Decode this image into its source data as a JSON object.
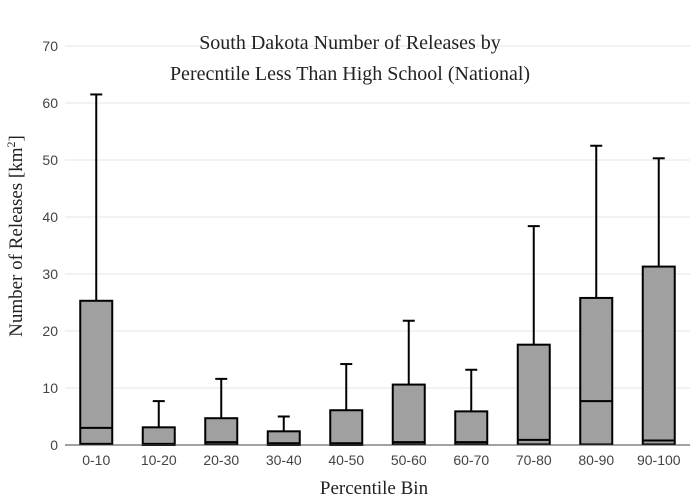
{
  "chart_data": {
    "type": "box",
    "title_lines": [
      "South Dakota Number of Releases by",
      "Perecntile Less Than High School (National)"
    ],
    "xlabel": "Percentile Bin",
    "ylabel_main": "Number of Releases  [km",
    "ylabel_sup": "2",
    "ylabel_end": "]",
    "ylim": [
      0,
      70
    ],
    "yticks": [
      0,
      10,
      20,
      30,
      40,
      50,
      60,
      70
    ],
    "grid": true,
    "colors": {
      "box_fill": "#a0a0a0",
      "box_stroke": "#000000",
      "grid": "#e6e6e6"
    },
    "categories": [
      "0-10",
      "10-20",
      "20-30",
      "30-40",
      "40-50",
      "50-60",
      "60-70",
      "70-80",
      "80-90",
      "90-100"
    ],
    "boxes": [
      {
        "min": 0,
        "q1": 0.2,
        "median": 3.0,
        "q3": 25.3,
        "max": 61.5
      },
      {
        "min": 0,
        "q1": 0.0,
        "median": 0.2,
        "q3": 3.1,
        "max": 7.7
      },
      {
        "min": 0,
        "q1": 0.1,
        "median": 0.5,
        "q3": 4.7,
        "max": 11.6
      },
      {
        "min": 0,
        "q1": 0.0,
        "median": 0.3,
        "q3": 2.4,
        "max": 5.0
      },
      {
        "min": 0,
        "q1": 0.0,
        "median": 0.3,
        "q3": 6.1,
        "max": 14.2
      },
      {
        "min": 0,
        "q1": 0.1,
        "median": 0.5,
        "q3": 10.6,
        "max": 21.8
      },
      {
        "min": 0,
        "q1": 0.1,
        "median": 0.5,
        "q3": 5.9,
        "max": 13.2
      },
      {
        "min": 0,
        "q1": 0.1,
        "median": 0.9,
        "q3": 17.6,
        "max": 38.4
      },
      {
        "min": 0,
        "q1": 0.1,
        "median": 7.7,
        "q3": 25.8,
        "max": 52.5
      },
      {
        "min": 0,
        "q1": 0.1,
        "median": 0.8,
        "q3": 31.3,
        "max": 50.3
      }
    ]
  }
}
